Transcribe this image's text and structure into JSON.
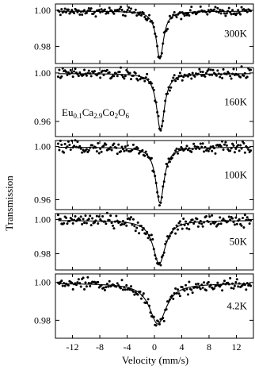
{
  "chart_data": {
    "type": "scatter",
    "xlabel": "Velocity (mm/s)",
    "ylabel": "Transmission",
    "xlim": [
      -14.5,
      14.5
    ],
    "x_ticks": [
      -12,
      -8,
      -4,
      0,
      4,
      8,
      12
    ],
    "x_tick_labels": [
      "-12",
      "-8",
      "-4",
      "0",
      "4",
      "8",
      "12"
    ],
    "annotation": {
      "base": "Eu",
      "parts": [
        {
          "text": "Eu",
          "sub": false
        },
        {
          "text": "0.1",
          "sub": true
        },
        {
          "text": "Ca",
          "sub": false
        },
        {
          "text": "2.9",
          "sub": true
        },
        {
          "text": "Co",
          "sub": false
        },
        {
          "text": "2",
          "sub": true
        },
        {
          "text": "O",
          "sub": false
        },
        {
          "text": "6",
          "sub": true
        }
      ]
    },
    "panels": [
      {
        "label": "300K",
        "ylim": [
          0.9705,
          1.0035
        ],
        "yticks": [
          1.0,
          0.98
        ],
        "ytick_labels": [
          "1.00",
          "0.98"
        ],
        "baseline": 0.9995,
        "dip_center": 0.8,
        "dip_depth": 0.0265,
        "dip_width": 1.3,
        "noise": 0.0012
      },
      {
        "label": "160K",
        "ylim": [
          0.9475,
          1.0045
        ],
        "yticks": [
          1.0,
          0.96
        ],
        "ytick_labels": [
          "1.00",
          "0.96"
        ],
        "baseline": 0.9995,
        "dip_center": 0.9,
        "dip_depth": 0.047,
        "dip_width": 1.4,
        "noise": 0.0022
      },
      {
        "label": "100K",
        "ylim": [
          0.9525,
          1.0045
        ],
        "yticks": [
          1.0,
          0.96
        ],
        "ytick_labels": [
          "1.00",
          "0.96"
        ],
        "baseline": 0.9995,
        "dip_center": 0.8,
        "dip_depth": 0.042,
        "dip_width": 1.5,
        "noise": 0.002
      },
      {
        "label": "50K",
        "ylim": [
          0.9705,
          1.0035
        ],
        "yticks": [
          1.0,
          0.98
        ],
        "ytick_labels": [
          "1.00",
          "0.98"
        ],
        "baseline": 0.9995,
        "dip_center": 0.7,
        "dip_depth": 0.0255,
        "dip_width": 2.2,
        "noise": 0.0018
      },
      {
        "label": "4.2K",
        "ylim": [
          0.9705,
          1.0045
        ],
        "yticks": [
          1.0,
          0.98
        ],
        "ytick_labels": [
          "1.00",
          "0.98"
        ],
        "baseline": 0.9995,
        "dip_center": 0.5,
        "dip_depth": 0.0215,
        "dip_width": 3.0,
        "noise": 0.0016
      }
    ]
  }
}
